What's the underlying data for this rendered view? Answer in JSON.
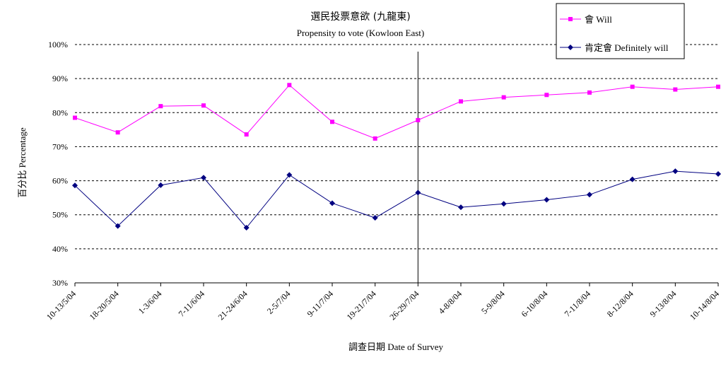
{
  "chart_data": {
    "type": "line",
    "title": "選民投票意欲 (九龍東)",
    "subtitle": "Propensity to vote (Kowloon East)",
    "xlabel": "調查日期 Date of Survey",
    "ylabel": "百分比 Percentage",
    "ylim": [
      30,
      100
    ],
    "yticks": [
      "30%",
      "40%",
      "50%",
      "60%",
      "70%",
      "80%",
      "90%",
      "100%"
    ],
    "grid": "horizontal dashed",
    "legend": "top-right",
    "categories": [
      "10-13/5/04",
      "18-20/5/04",
      "1-3/6/04",
      "7-11/6/04",
      "21-24/6/04",
      "2-5/7/04",
      "9-11/7/04",
      "19-21/7/04",
      "26-29/7/04",
      "4-8/8/04",
      "5-9/8/04",
      "6-10/8/04",
      "7-11/8/04",
      "8-12/8/04",
      "9-13/8/04",
      "10-14/8/04"
    ],
    "divider_after_index": 8,
    "series": [
      {
        "name": "會 Will",
        "color": "#ff00ff",
        "marker": "square",
        "values": [
          78.5,
          74.2,
          81.9,
          82.1,
          73.6,
          88.1,
          77.3,
          72.4,
          77.8,
          83.3,
          84.5,
          85.2,
          85.9,
          87.6,
          86.8,
          87.6
        ]
      },
      {
        "name": "肯定會 Definitely will",
        "color": "#000080",
        "marker": "diamond",
        "values": [
          58.6,
          46.7,
          58.7,
          60.9,
          46.2,
          61.7,
          53.4,
          49.1,
          56.5,
          52.2,
          53.2,
          54.4,
          55.9,
          60.4,
          62.8,
          62.0
        ]
      }
    ]
  }
}
